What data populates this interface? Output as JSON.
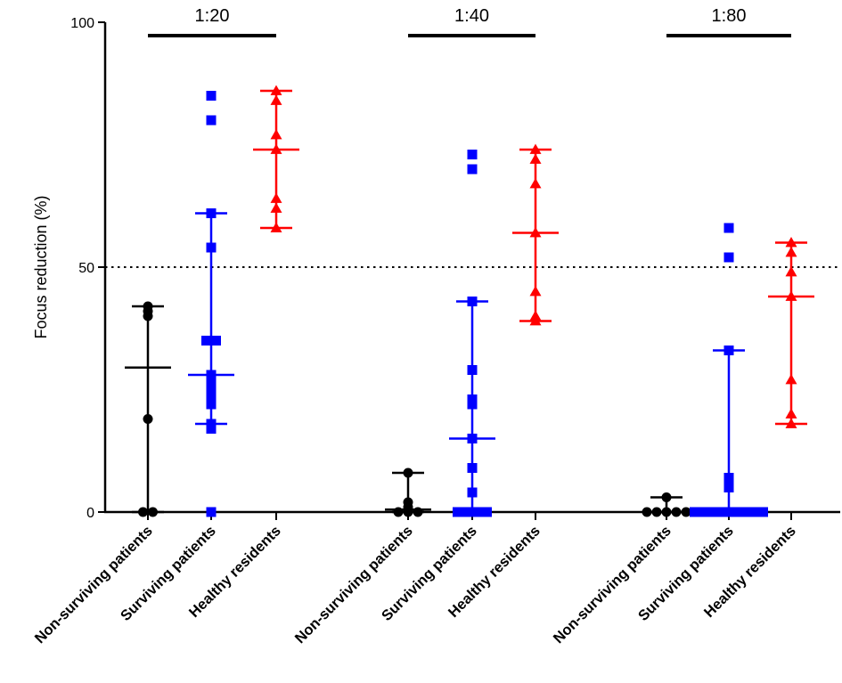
{
  "chart_data": {
    "type": "scatter",
    "title": "",
    "xlabel": "",
    "ylabel": "Focus reduction (%)",
    "ylim": [
      0,
      100
    ],
    "yticks": [
      "0",
      "50",
      "100"
    ],
    "reference_line": {
      "y": 50,
      "style": "dotted"
    },
    "dilutions": [
      {
        "label": "1:20",
        "groups": [
          {
            "name": "Non-surviving patients",
            "color": "#000000",
            "marker": "circle",
            "values": [
              41,
              42,
              40,
              19,
              0,
              0
            ],
            "central": 29.5,
            "low": 0,
            "high": 42
          },
          {
            "name": "Surviving patients",
            "color": "#0000ff",
            "marker": "square",
            "values": [
              85,
              80,
              61,
              54,
              35,
              35,
              28,
              26,
              24,
              22,
              18,
              17,
              0
            ],
            "central": 28,
            "low": 18,
            "high": 61
          },
          {
            "name": "Healthy residents",
            "color": "#ff0000",
            "marker": "triangle",
            "values": [
              86,
              84,
              77,
              74,
              64,
              62,
              58
            ],
            "central": 74,
            "low": 58,
            "high": 86
          }
        ]
      },
      {
        "label": "1:40",
        "groups": [
          {
            "name": "Non-surviving patients",
            "color": "#000000",
            "marker": "circle",
            "values": [
              8,
              2,
              1,
              0,
              0,
              0
            ],
            "central": 0.5,
            "low": 0,
            "high": 8
          },
          {
            "name": "Surviving patients",
            "color": "#0000ff",
            "marker": "square",
            "values": [
              73,
              70,
              43,
              29,
              23,
              22,
              15,
              9,
              4,
              0,
              0,
              0,
              0
            ],
            "central": 15,
            "low": 0,
            "high": 43
          },
          {
            "name": "Healthy residents",
            "color": "#ff0000",
            "marker": "triangle",
            "values": [
              74,
              72,
              67,
              57,
              45,
              40,
              39
            ],
            "central": 57,
            "low": 39,
            "high": 74
          }
        ]
      },
      {
        "label": "1:80",
        "groups": [
          {
            "name": "Non-surviving patients",
            "color": "#000000",
            "marker": "circle",
            "values": [
              3,
              0,
              0,
              0,
              0,
              0
            ],
            "central": 0,
            "low": 0,
            "high": 3
          },
          {
            "name": "Surviving patients",
            "color": "#0000ff",
            "marker": "square",
            "values": [
              58,
              52,
              33,
              7,
              5,
              0,
              0,
              0,
              0,
              0,
              0,
              0,
              0
            ],
            "central": 0,
            "low": 0,
            "high": 33
          },
          {
            "name": "Healthy residents",
            "color": "#ff0000",
            "marker": "triangle",
            "values": [
              55,
              53,
              49,
              44,
              27,
              20,
              18
            ],
            "central": 44,
            "low": 18,
            "high": 55
          }
        ]
      }
    ]
  }
}
